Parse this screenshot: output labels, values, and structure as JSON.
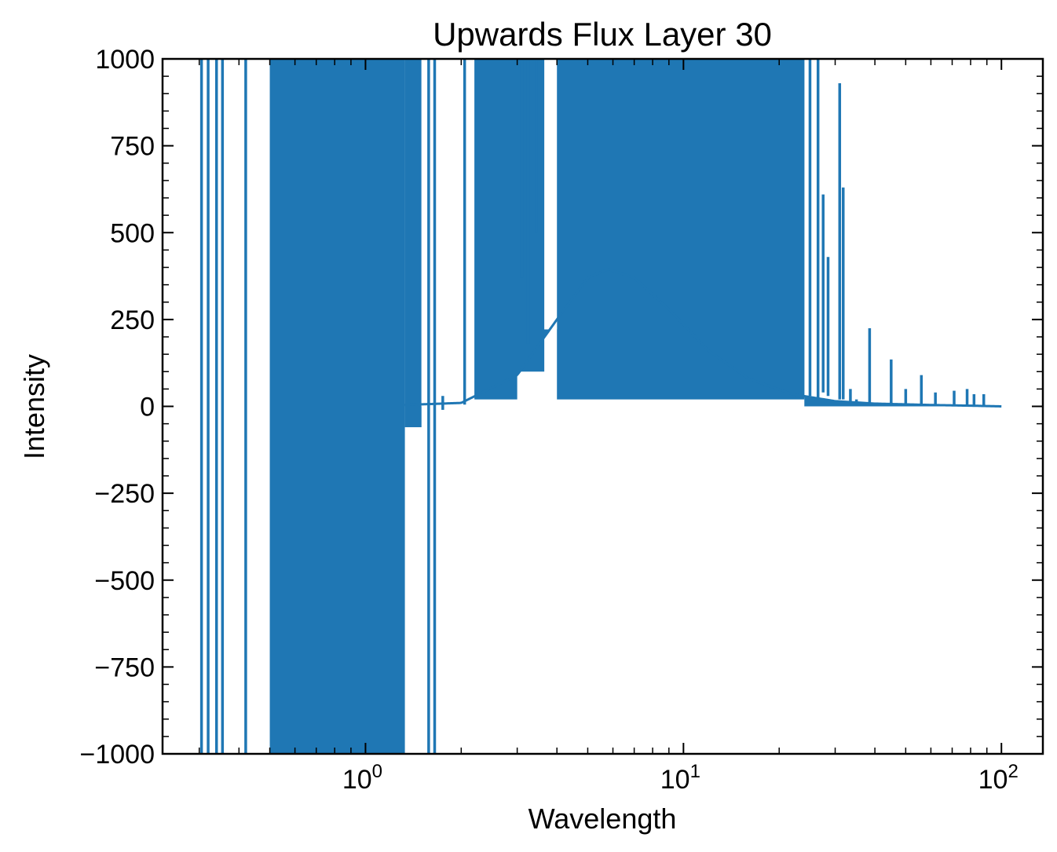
{
  "chart_data": {
    "type": "line",
    "title": "Upwards Flux Layer 30",
    "xlabel": "Wavelength",
    "ylabel": "Intensity",
    "xscale": "log",
    "xlim": [
      0.23,
      135
    ],
    "ylim": [
      -1000,
      1000
    ],
    "grid": false,
    "legend": "none",
    "color": "#1f77b4",
    "x_ticks": [
      {
        "value": 1,
        "base": "10",
        "exp": "0"
      },
      {
        "value": 10,
        "base": "10",
        "exp": "1"
      },
      {
        "value": 100,
        "base": "10",
        "exp": "2"
      }
    ],
    "y_ticks": [
      {
        "value": 1000,
        "label": "1000"
      },
      {
        "value": 750,
        "label": "750"
      },
      {
        "value": 500,
        "label": "500"
      },
      {
        "value": 250,
        "label": "250"
      },
      {
        "value": 0,
        "label": "0"
      },
      {
        "value": -250,
        "label": "−250"
      },
      {
        "value": -500,
        "label": "−500"
      },
      {
        "value": -750,
        "label": "−750"
      },
      {
        "value": -1000,
        "label": "−1000"
      }
    ],
    "series": [
      {
        "baseline": [
          [
            0.3,
            0
          ],
          [
            1.0,
            0
          ],
          [
            2.0,
            10
          ],
          [
            3.0,
            90
          ],
          [
            4.0,
            250
          ],
          [
            5.0,
            370
          ],
          [
            5.8,
            395
          ],
          [
            7.0,
            370
          ],
          [
            9.0,
            280
          ],
          [
            12.0,
            160
          ],
          [
            16.0,
            80
          ],
          [
            22.0,
            35
          ],
          [
            30.0,
            15
          ],
          [
            40.0,
            8
          ],
          [
            60.0,
            4
          ],
          [
            80.0,
            2
          ],
          [
            100.0,
            0
          ]
        ],
        "bands": [
          {
            "x_from": 0.5,
            "x_to": 1.33,
            "y_min": -1000,
            "y_max": 1000
          },
          {
            "x_from": 1.33,
            "x_to": 1.5,
            "y_min": -60,
            "y_max": 1000
          },
          {
            "x_from": 2.2,
            "x_to": 3.0,
            "y_min": 20,
            "y_max": 1000
          },
          {
            "x_from": 3.0,
            "x_to": 3.65,
            "y_min": 100,
            "y_max": 1000
          },
          {
            "x_from": 4.0,
            "x_to": 24.0,
            "y_min": 20,
            "y_max": 1000
          }
        ],
        "spikes": [
          [
            0.305,
            -1000,
            1000
          ],
          [
            0.32,
            -1000,
            1000
          ],
          [
            0.34,
            -1000,
            1000
          ],
          [
            0.355,
            -1000,
            1000
          ],
          [
            0.42,
            -1000,
            1000
          ],
          [
            1.58,
            -1000,
            1000
          ],
          [
            1.65,
            -1000,
            1000
          ],
          [
            1.75,
            -10,
            30
          ],
          [
            2.05,
            5,
            1000
          ],
          [
            3.1,
            370,
            1000
          ],
          [
            3.25,
            180,
            1000
          ],
          [
            3.45,
            500,
            1000
          ],
          [
            25.0,
            30,
            1000
          ],
          [
            26.5,
            20,
            1000
          ],
          [
            27.5,
            40,
            610
          ],
          [
            28.5,
            30,
            430
          ],
          [
            31.0,
            20,
            930
          ],
          [
            31.8,
            20,
            630
          ],
          [
            33.5,
            10,
            50
          ],
          [
            35.0,
            10,
            20
          ],
          [
            38.5,
            5,
            225
          ],
          [
            45.0,
            5,
            135
          ],
          [
            50.0,
            5,
            50
          ],
          [
            56.0,
            5,
            90
          ],
          [
            62.0,
            3,
            40
          ],
          [
            71.0,
            3,
            45
          ],
          [
            78.0,
            3,
            50
          ],
          [
            82.0,
            3,
            35
          ],
          [
            88.0,
            2,
            35
          ]
        ]
      }
    ]
  }
}
